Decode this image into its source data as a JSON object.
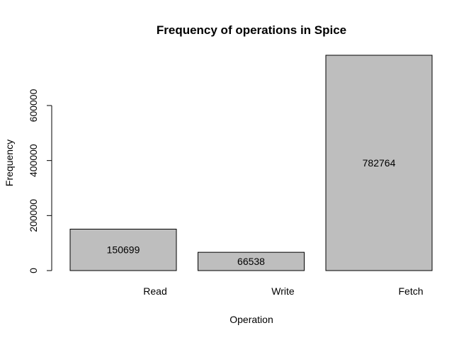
{
  "chart_data": {
    "type": "bar",
    "title": "Frequency of operations in Spice",
    "xlabel": "Operation",
    "ylabel": "Frequency",
    "categories": [
      "Read",
      "Write",
      "Fetch"
    ],
    "values": [
      150699,
      66538,
      782764
    ],
    "value_labels": [
      "150699",
      "66538",
      "782764"
    ],
    "yticks": [
      0,
      200000,
      400000,
      600000
    ],
    "ytick_labels": [
      "0",
      "200000",
      "400000",
      "600000"
    ],
    "ylim": [
      0,
      782764
    ],
    "bar_color": "#bebebe",
    "grid": false,
    "legend": "none"
  }
}
